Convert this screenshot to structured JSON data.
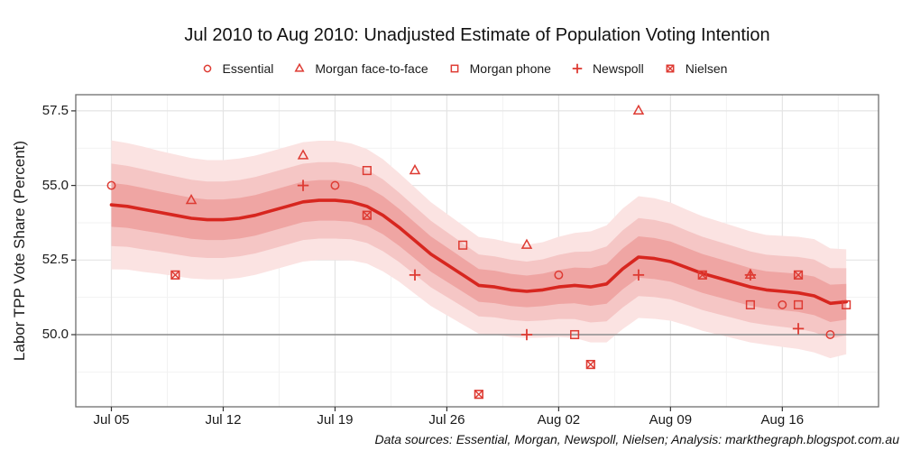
{
  "title": "Jul 2010 to Aug 2010: Unadjusted Estimate of Population Voting Intention",
  "footer": "Data sources: Essential, Morgan, Newspoll, Nielsen;  Analysis: markthegraph.blogspot.com.au",
  "axes": {
    "y_label": "Labor TPP Vote Share (Percent)",
    "y_tick_labels": [
      "57.5",
      "55.0",
      "52.5",
      "50.0"
    ],
    "y_tick_values": [
      57.5,
      55.0,
      52.5,
      50.0
    ],
    "x_tick_labels": [
      "Jul 05",
      "Jul 12",
      "Jul 19",
      "Jul 26",
      "Aug 02",
      "Aug 09",
      "Aug 16"
    ],
    "x_tick_days": [
      0,
      7,
      14,
      21,
      28,
      35,
      42
    ],
    "reference_line_value": 50.0
  },
  "chart_data": {
    "type": "scatter+line+ribbon",
    "xlim_days": [
      -2.23,
      48.05
    ],
    "ylim": [
      47.58,
      58.04
    ],
    "grid": "major and minor, light gray on white panel",
    "legend_position": "top, horizontal, centered",
    "colors": {
      "trend_line": "#d7261f",
      "marker": "#de3b33",
      "band_inner": "#efa5a3",
      "band_mid": "#f5c6c5",
      "band_outer": "#fbe3e2",
      "grid_major": "#e4e4e4",
      "grid_minor": "#f2f2f2",
      "panel_border": "#6e6e6e",
      "reference_line": "#8c8c8c"
    },
    "series": [
      {
        "name": "Essential",
        "marker": "circle-open",
        "points": [
          {
            "date": "Jul 05",
            "day": 0,
            "value": 55.0
          },
          {
            "date": "Jul 19",
            "day": 14,
            "value": 55.0
          },
          {
            "date": "Aug 02",
            "day": 28,
            "value": 52.0
          },
          {
            "date": "Aug 16",
            "day": 42,
            "value": 51.0
          },
          {
            "date": "Aug 19",
            "day": 45,
            "value": 50.0
          }
        ]
      },
      {
        "name": "Morgan face-to-face",
        "marker": "triangle-open",
        "points": [
          {
            "date": "Jul 10",
            "day": 5,
            "value": 54.5
          },
          {
            "date": "Jul 17",
            "day": 12,
            "value": 56.0
          },
          {
            "date": "Jul 24",
            "day": 19,
            "value": 55.5
          },
          {
            "date": "Jul 31",
            "day": 26,
            "value": 53.0
          },
          {
            "date": "Aug 07",
            "day": 33,
            "value": 57.5
          },
          {
            "date": "Aug 14",
            "day": 40,
            "value": 52.0
          }
        ]
      },
      {
        "name": "Morgan phone",
        "marker": "square-open",
        "points": [
          {
            "date": "Jul 21",
            "day": 16,
            "value": 55.5
          },
          {
            "date": "Jul 27",
            "day": 22,
            "value": 53.0
          },
          {
            "date": "Aug 03",
            "day": 29,
            "value": 50.0
          },
          {
            "date": "Aug 14",
            "day": 40,
            "value": 51.0
          },
          {
            "date": "Aug 17",
            "day": 43,
            "value": 51.0
          },
          {
            "date": "Aug 20",
            "day": 46,
            "value": 51.0
          }
        ]
      },
      {
        "name": "Newspoll",
        "marker": "plus",
        "points": [
          {
            "date": "Jul 17",
            "day": 12,
            "value": 55.0
          },
          {
            "date": "Jul 24",
            "day": 19,
            "value": 52.0
          },
          {
            "date": "Jul 31",
            "day": 26,
            "value": 50.0
          },
          {
            "date": "Aug 07",
            "day": 33,
            "value": 52.0
          },
          {
            "date": "Aug 14",
            "day": 40,
            "value": 52.0
          },
          {
            "date": "Aug 17",
            "day": 43,
            "value": 50.2
          }
        ]
      },
      {
        "name": "Nielsen",
        "marker": "square-x",
        "points": [
          {
            "date": "Jul 09",
            "day": 4,
            "value": 52.0
          },
          {
            "date": "Jul 21",
            "day": 16,
            "value": 54.0
          },
          {
            "date": "Jul 28",
            "day": 23,
            "value": 48.0
          },
          {
            "date": "Aug 04",
            "day": 30,
            "value": 49.0
          },
          {
            "date": "Aug 11",
            "day": 37,
            "value": 52.0
          },
          {
            "date": "Aug 17",
            "day": 43,
            "value": 52.0
          }
        ]
      }
    ],
    "trend": {
      "start_date": "Jul 05",
      "end_date": "Aug 20",
      "daily_values": [
        54.35,
        54.3,
        54.2,
        54.1,
        54.0,
        53.9,
        53.85,
        53.85,
        53.9,
        54.0,
        54.15,
        54.3,
        54.45,
        54.5,
        54.5,
        54.45,
        54.3,
        54.0,
        53.6,
        53.15,
        52.7,
        52.35,
        52.0,
        51.65,
        51.6,
        51.5,
        51.45,
        51.5,
        51.6,
        51.65,
        51.6,
        51.7,
        52.2,
        52.6,
        52.55,
        52.45,
        52.25,
        52.05,
        51.9,
        51.75,
        51.6,
        51.5,
        51.45,
        51.4,
        51.3,
        51.05,
        51.1
      ]
    },
    "confidence_bands": {
      "halfwidths": {
        "inner": 0.68,
        "mid": 1.28,
        "outer": 2.0
      },
      "width_scale_daily": [
        1.08,
        1.06,
        1.05,
        1.03,
        1.02,
        1.01,
        1.0,
        1.0,
        1.0,
        1.0,
        1.0,
        1.0,
        1.0,
        1.0,
        1.0,
        0.98,
        0.96,
        0.94,
        0.91,
        0.89,
        0.87,
        0.85,
        0.83,
        0.81,
        0.8,
        0.79,
        0.78,
        0.8,
        0.84,
        0.88,
        0.93,
        0.98,
        1.01,
        1.02,
        1.01,
        0.99,
        0.97,
        0.96,
        0.95,
        0.94,
        0.93,
        0.92,
        0.93,
        0.94,
        0.95,
        0.92,
        0.88
      ]
    }
  }
}
